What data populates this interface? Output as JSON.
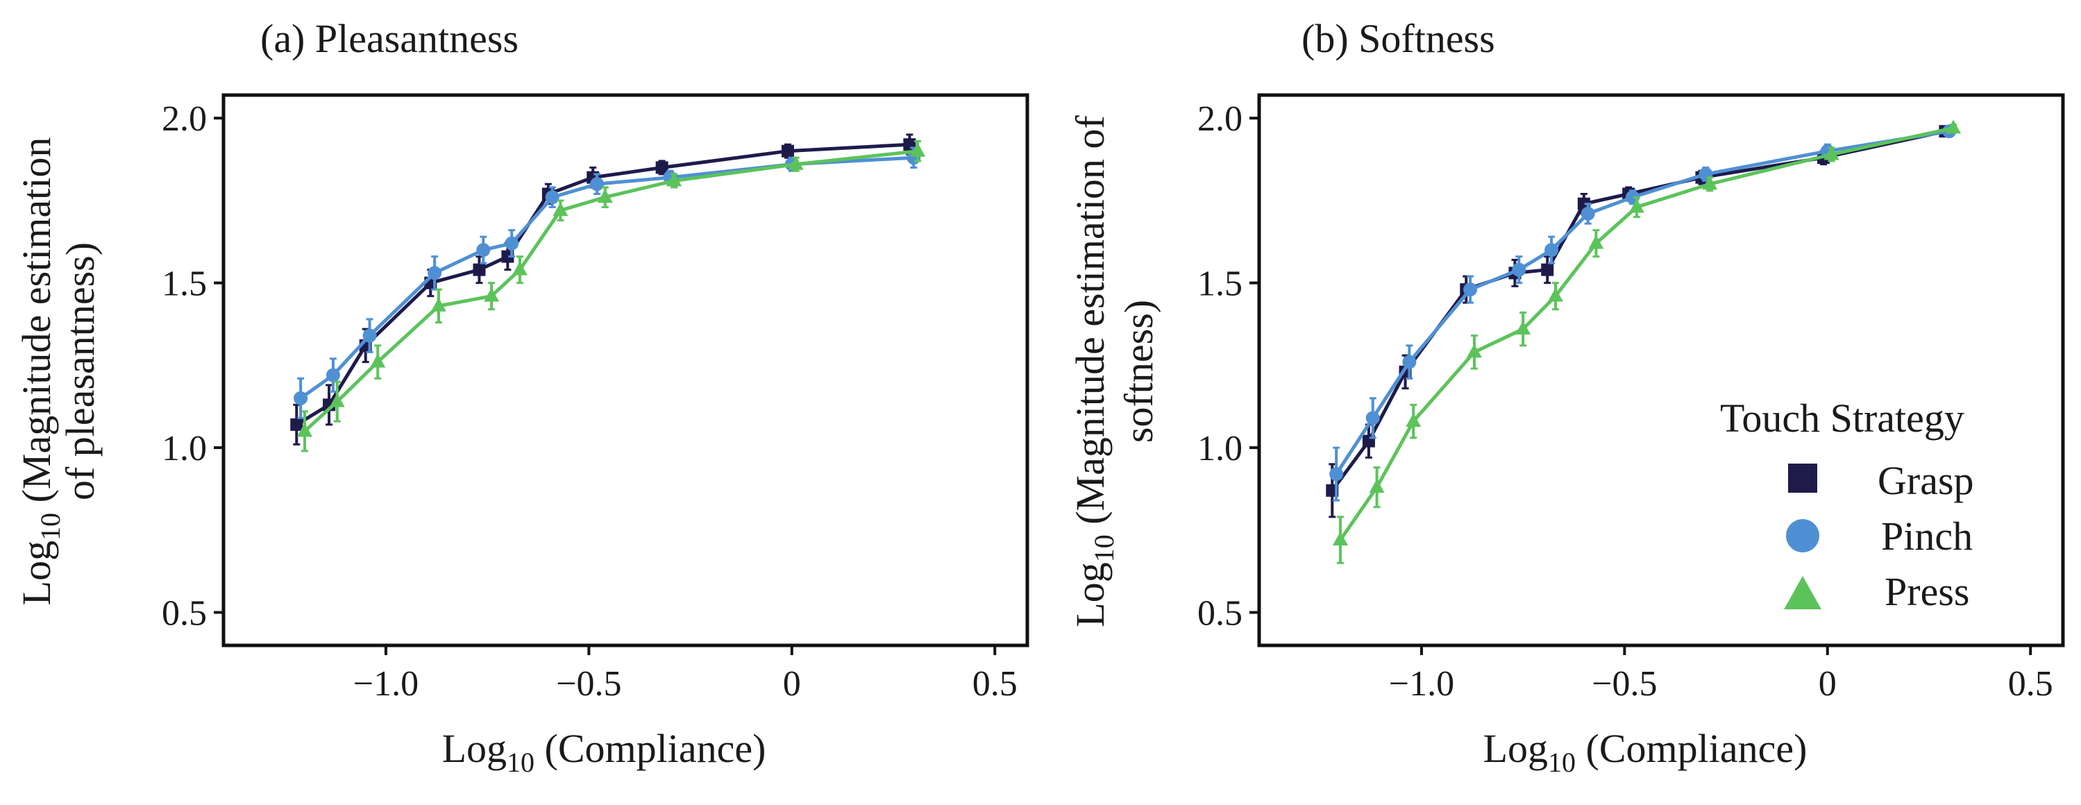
{
  "legend": {
    "title": "Touch Strategy",
    "entries": [
      {
        "key": "grasp",
        "label": "Grasp"
      },
      {
        "key": "pinch",
        "label": "Pinch"
      },
      {
        "key": "press",
        "label": "Press"
      }
    ]
  },
  "colors": {
    "grasp": "#1e1b4b",
    "pinch": "#4f90d4",
    "press": "#5cc35b"
  },
  "chart_data": [
    {
      "type": "line",
      "title": "(a) Pleasantness",
      "xlabel": "Log10 (Compliance)",
      "xlabel_main": "Log",
      "xlabel_sub": "10",
      "xlabel_rest": " (Compliance)",
      "ylabel": "Log10 (Magnitude estimation of pleasantness)",
      "ylabel_main": "Log",
      "ylabel_sub": "10",
      "ylabel_rest": " (Magnitude estimation",
      "ylabel_line2": "of pleasantness)",
      "xlim": [
        -1.4,
        0.58
      ],
      "ylim": [
        0.4,
        2.07
      ],
      "xticks": [
        -1.0,
        -0.5,
        0,
        0.5
      ],
      "xtick_labels": [
        "−1.0",
        "−0.5",
        "0",
        "0.5"
      ],
      "yticks": [
        0.5,
        1.0,
        1.5,
        2.0
      ],
      "ytick_labels": [
        "0.5",
        "1.0",
        "1.5",
        "2.0"
      ],
      "series": [
        {
          "key": "grasp",
          "name": "Grasp",
          "marker": "square",
          "x": [
            -1.22,
            -1.14,
            -1.05,
            -0.89,
            -0.77,
            -0.7,
            -0.6,
            -0.49,
            -0.32,
            -0.01,
            0.29
          ],
          "y": [
            1.07,
            1.13,
            1.31,
            1.5,
            1.54,
            1.58,
            1.77,
            1.82,
            1.85,
            1.9,
            1.92
          ],
          "err": [
            0.06,
            0.06,
            0.05,
            0.04,
            0.04,
            0.04,
            0.03,
            0.03,
            0.02,
            0.02,
            0.03
          ]
        },
        {
          "key": "pinch",
          "name": "Pinch",
          "marker": "circle",
          "x": [
            -1.21,
            -1.13,
            -1.04,
            -0.88,
            -0.76,
            -0.69,
            -0.59,
            -0.48,
            -0.3,
            0.0,
            0.3
          ],
          "y": [
            1.15,
            1.22,
            1.34,
            1.53,
            1.6,
            1.62,
            1.76,
            1.8,
            1.82,
            1.86,
            1.88
          ],
          "err": [
            0.06,
            0.05,
            0.05,
            0.05,
            0.04,
            0.04,
            0.03,
            0.03,
            0.02,
            0.02,
            0.03
          ]
        },
        {
          "key": "press",
          "name": "Press",
          "marker": "triangle",
          "x": [
            -1.2,
            -1.12,
            -1.02,
            -0.87,
            -0.74,
            -0.67,
            -0.57,
            -0.46,
            -0.29,
            0.01,
            0.31
          ],
          "y": [
            1.05,
            1.14,
            1.26,
            1.43,
            1.46,
            1.54,
            1.72,
            1.76,
            1.81,
            1.86,
            1.9
          ],
          "err": [
            0.06,
            0.06,
            0.05,
            0.05,
            0.04,
            0.04,
            0.03,
            0.03,
            0.02,
            0.02,
            0.03
          ]
        }
      ]
    },
    {
      "type": "line",
      "title": "(b) Softness",
      "xlabel": "Log10 (Compliance)",
      "xlabel_main": "Log",
      "xlabel_sub": "10",
      "xlabel_rest": " (Compliance)",
      "ylabel": "Log10 (Magnitude estimation of softness)",
      "ylabel_main": "Log",
      "ylabel_sub": "10",
      "ylabel_rest": " (Magnitude estimation of",
      "ylabel_line2": "softness)",
      "xlim": [
        -1.4,
        0.58
      ],
      "ylim": [
        0.4,
        2.07
      ],
      "xticks": [
        -1.0,
        -0.5,
        0,
        0.5
      ],
      "xtick_labels": [
        "−1.0",
        "−0.5",
        "0",
        "0.5"
      ],
      "yticks": [
        0.5,
        1.0,
        1.5,
        2.0
      ],
      "ytick_labels": [
        "0.5",
        "1.0",
        "1.5",
        "2.0"
      ],
      "series": [
        {
          "key": "grasp",
          "name": "Grasp",
          "marker": "square",
          "x": [
            -1.22,
            -1.13,
            -1.04,
            -0.89,
            -0.77,
            -0.69,
            -0.6,
            -0.49,
            -0.31,
            -0.01,
            0.29
          ],
          "y": [
            0.87,
            1.02,
            1.23,
            1.48,
            1.53,
            1.54,
            1.74,
            1.77,
            1.82,
            1.88,
            1.96
          ],
          "err": [
            0.08,
            0.05,
            0.05,
            0.04,
            0.04,
            0.04,
            0.03,
            0.02,
            0.02,
            0.02,
            0.01
          ]
        },
        {
          "key": "pinch",
          "name": "Pinch",
          "marker": "circle",
          "x": [
            -1.21,
            -1.12,
            -1.03,
            -0.88,
            -0.76,
            -0.68,
            -0.59,
            -0.48,
            -0.3,
            0.0,
            0.3
          ],
          "y": [
            0.92,
            1.09,
            1.26,
            1.48,
            1.54,
            1.6,
            1.71,
            1.76,
            1.83,
            1.9,
            1.96
          ],
          "err": [
            0.08,
            0.06,
            0.05,
            0.04,
            0.04,
            0.04,
            0.03,
            0.02,
            0.02,
            0.02,
            0.01
          ]
        },
        {
          "key": "press",
          "name": "Press",
          "marker": "triangle",
          "x": [
            -1.2,
            -1.11,
            -1.02,
            -0.87,
            -0.75,
            -0.67,
            -0.57,
            -0.47,
            -0.29,
            0.01,
            0.31
          ],
          "y": [
            0.72,
            0.88,
            1.08,
            1.29,
            1.36,
            1.46,
            1.62,
            1.73,
            1.8,
            1.89,
            1.97
          ],
          "err": [
            0.07,
            0.06,
            0.05,
            0.05,
            0.05,
            0.04,
            0.04,
            0.03,
            0.02,
            0.02,
            0.01
          ]
        }
      ]
    }
  ]
}
